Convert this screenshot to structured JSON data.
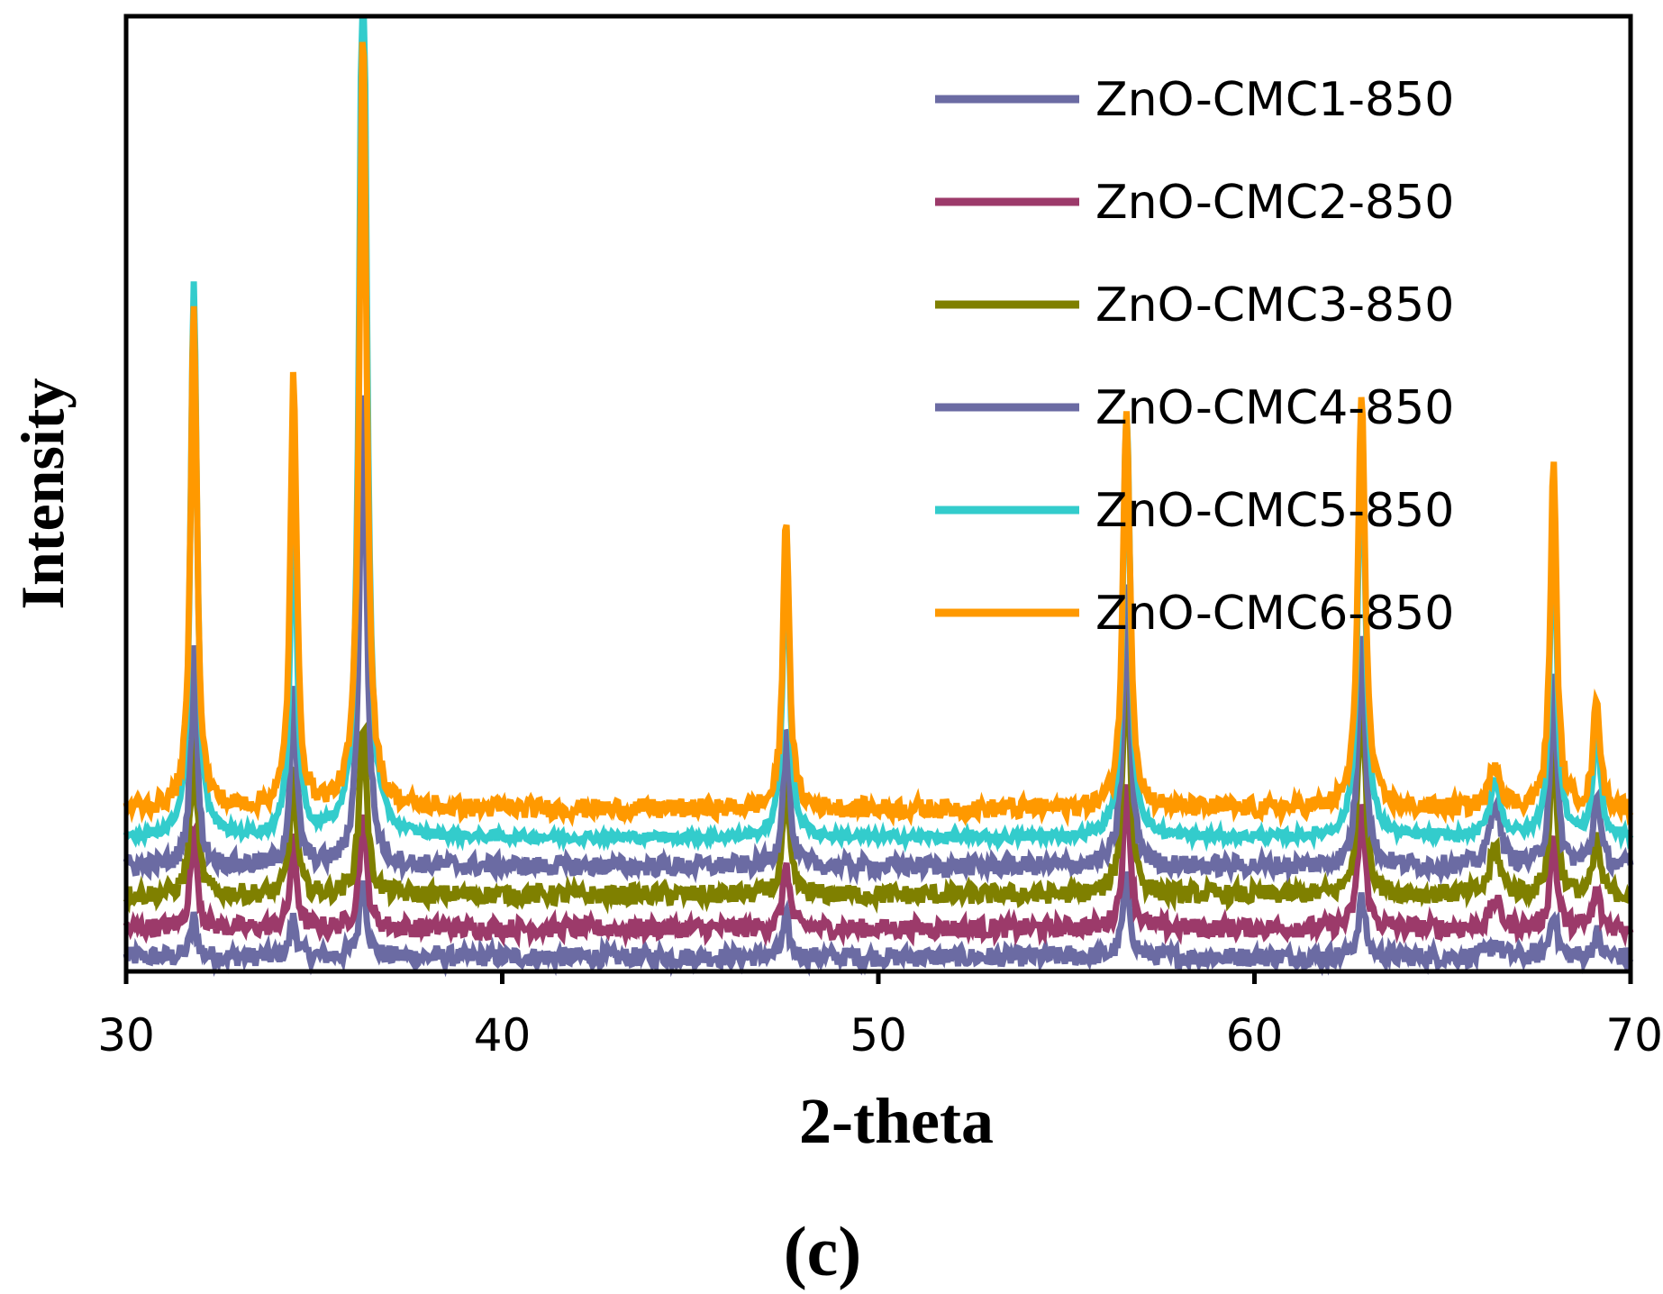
{
  "chart_data": {
    "type": "line",
    "title": "",
    "xlabel": "2-theta",
    "ylabel": "Intensity",
    "panel_label": "(c)",
    "xlim": [
      30,
      70
    ],
    "ylim": [
      0,
      100
    ],
    "xticks": [
      30,
      40,
      50,
      60,
      70
    ],
    "yticks_shown": false,
    "grid": false,
    "legend_position": "top-right",
    "peaks": [
      {
        "x": 31.8,
        "width": 0.16
      },
      {
        "x": 34.45,
        "width": 0.16
      },
      {
        "x": 36.3,
        "width": 0.18
      },
      {
        "x": 47.55,
        "width": 0.16
      },
      {
        "x": 56.6,
        "width": 0.18
      },
      {
        "x": 62.85,
        "width": 0.18
      },
      {
        "x": 66.4,
        "width": 0.25
      },
      {
        "x": 67.95,
        "width": 0.16
      },
      {
        "x": 69.1,
        "width": 0.16
      }
    ],
    "series": [
      {
        "name": "ZnO-CMC1-850",
        "color": "#6B6BA3",
        "baseline": 1.5,
        "noise": 1.0,
        "peak_heights": [
          4,
          4,
          8,
          4,
          8,
          6,
          1.5,
          5,
          2.5
        ]
      },
      {
        "name": "ZnO-CMC2-850",
        "color": "#9C3A6A",
        "baseline": 4.5,
        "noise": 1.0,
        "peak_heights": [
          11,
          9,
          12,
          7,
          15,
          13,
          3,
          10,
          4
        ]
      },
      {
        "name": "ZnO-CMC3-850",
        "color": "#7F8000",
        "baseline": 8,
        "noise": 1.0,
        "peak_heights": [
          17,
          13,
          18,
          12,
          26,
          22,
          5,
          17,
          6
        ]
      },
      {
        "name": "ZnO-CMC4-850",
        "color": "#6B6BA3",
        "baseline": 11,
        "noise": 1.0,
        "peak_heights": [
          23,
          18,
          50,
          15,
          29,
          25,
          7,
          20,
          8
        ]
      },
      {
        "name": "ZnO-CMC5-850",
        "color": "#33CCCC",
        "baseline": 14,
        "noise": 0.5,
        "peak_heights": [
          58,
          37,
          101,
          33,
          45,
          45,
          6,
          36,
          13
        ]
      },
      {
        "name": "ZnO-CMC6-850",
        "color": "#FF9900",
        "baseline": 17,
        "noise": 1.0,
        "peak_heights": [
          53,
          45,
          82,
          31,
          42,
          44,
          5,
          36,
          12
        ]
      }
    ]
  }
}
